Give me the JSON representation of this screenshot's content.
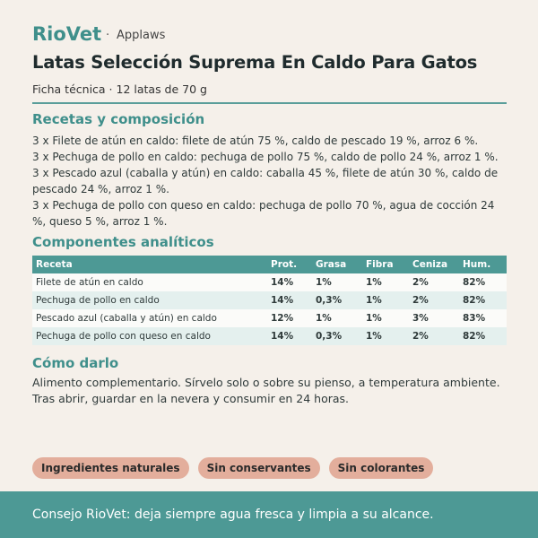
{
  "header": {
    "brand": "RioVet",
    "separator": "·",
    "maker": "Applaws",
    "title": "Latas Selección Suprema En Caldo Para Gatos",
    "subtitle": "Ficha técnica · 12 latas de 70 g"
  },
  "composition": {
    "heading": "Recetas y composición",
    "items": [
      "3 x Filete de atún en caldo: filete de atún 75 %, caldo de pescado 19 %, arroz 6 %.",
      "3 x Pechuga de pollo en caldo: pechuga de pollo 75 %, caldo de pollo 24 %, arroz 1 %.",
      "3 x Pescado azul (caballa y atún) en caldo: caballa 45 %, filete de atún 30 %, caldo de pescado 24 %, arroz 1 %.",
      "3 x Pechuga de pollo con queso en caldo: pechuga de pollo 70 %, agua de cocción 24 %, queso 5 %, arroz 1 %."
    ]
  },
  "analysis": {
    "heading": "Componentes analíticos",
    "table": {
      "columns": [
        "Receta",
        "Prot.",
        "Grasa",
        "Fibra",
        "Ceniza",
        "Hum."
      ],
      "rows": [
        [
          "Filete de atún en caldo",
          "14%",
          "1%",
          "1%",
          "2%",
          "82%"
        ],
        [
          "Pechuga de pollo en caldo",
          "14%",
          "0,3%",
          "1%",
          "2%",
          "82%"
        ],
        [
          "Pescado azul (caballa y atún) en caldo",
          "12%",
          "1%",
          "1%",
          "3%",
          "83%"
        ],
        [
          "Pechuga de pollo con queso en caldo",
          "14%",
          "0,3%",
          "1%",
          "2%",
          "82%"
        ]
      ]
    }
  },
  "usage": {
    "heading": "Cómo darlo",
    "text": "Alimento complementario. Sírvelo solo o sobre su pienso, a temperatura ambiente. Tras abrir, guardar en la nevera y consumir en 24 horas."
  },
  "tags": [
    "Ingredientes naturales",
    "Sin conservantes",
    "Sin colorantes"
  ],
  "footer": {
    "text": "Consejo RioVet: deja siempre agua fresca y limpia a su alcance."
  }
}
